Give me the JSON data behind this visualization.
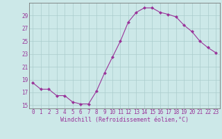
{
  "x": [
    0,
    1,
    2,
    3,
    4,
    5,
    6,
    7,
    8,
    9,
    10,
    11,
    12,
    13,
    14,
    15,
    16,
    17,
    18,
    19,
    20,
    21,
    22,
    23
  ],
  "y": [
    18.5,
    17.5,
    17.5,
    16.5,
    16.5,
    15.5,
    15.2,
    15.2,
    17.2,
    20.0,
    22.5,
    25.0,
    28.0,
    29.5,
    30.2,
    30.2,
    29.5,
    29.2,
    28.8,
    27.5,
    26.5,
    25.0,
    24.0,
    23.2
  ],
  "line_color": "#993399",
  "marker": "D",
  "markersize": 2,
  "linewidth": 0.8,
  "xlabel": "Windchill (Refroidissement éolien,°C)",
  "xlabel_fontsize": 6,
  "ylabel_ticks": [
    15,
    17,
    19,
    21,
    23,
    25,
    27,
    29
  ],
  "xlim": [
    -0.5,
    23.5
  ],
  "ylim": [
    14.5,
    31.0
  ],
  "background_color": "#cce8e8",
  "grid_color": "#aacccc",
  "tick_color": "#993399",
  "tick_fontsize": 5.5,
  "xtick_labels": [
    "0",
    "1",
    "2",
    "3",
    "4",
    "5",
    "6",
    "7",
    "8",
    "9",
    "10",
    "11",
    "12",
    "13",
    "14",
    "15",
    "16",
    "17",
    "18",
    "19",
    "20",
    "21",
    "22",
    "23"
  ]
}
